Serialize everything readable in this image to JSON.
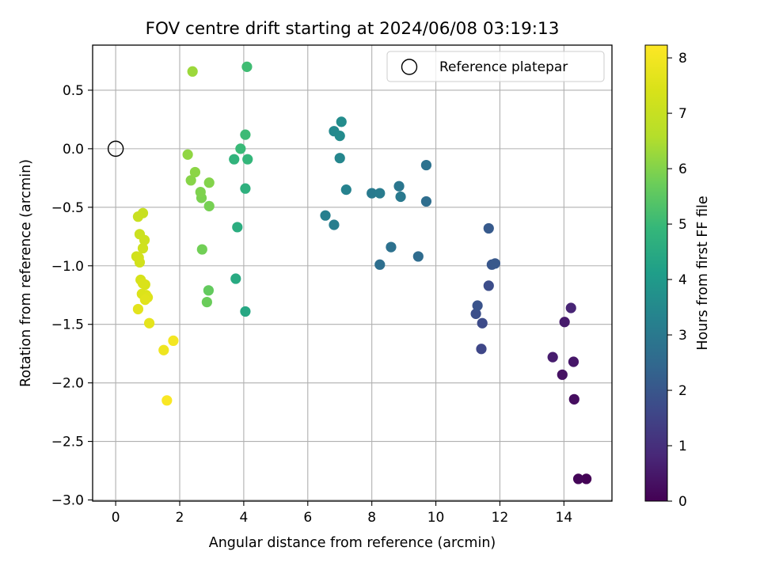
{
  "chart_data": {
    "type": "scatter",
    "title": "FOV centre drift starting at 2024/06/08 03:19:13",
    "xlabel": "Angular distance from reference (arcmin)",
    "ylabel": "Rotation from reference (arcmin)",
    "xlim": [
      -0.72,
      15.5
    ],
    "ylim": [
      -3.01,
      0.885
    ],
    "x_ticks": [
      0,
      2,
      4,
      6,
      8,
      10,
      12,
      14
    ],
    "y_ticks": [
      0.5,
      0.0,
      -0.5,
      -1.0,
      -1.5,
      -2.0,
      -2.5,
      -3.0
    ],
    "y_tick_labels": [
      "0.5",
      "0.0",
      "−0.5",
      "−1.0",
      "−1.5",
      "−2.0",
      "−2.5",
      "−3.0"
    ],
    "grid": true,
    "legend": {
      "location": "upper right",
      "entries": [
        "Reference platepar"
      ]
    },
    "reference_point": {
      "x": 0.0,
      "y": 0.0,
      "marker": "hollow circle"
    },
    "colorbar": {
      "label": "Hours from first FF file",
      "colormap": "viridis",
      "range": [
        0,
        8.23
      ],
      "ticks": [
        0,
        1,
        2,
        3,
        4,
        5,
        6,
        7,
        8
      ]
    },
    "points": [
      {
        "x": 14.7,
        "y": -2.82,
        "hours": 0.05
      },
      {
        "x": 14.45,
        "y": -2.82,
        "hours": 0.1
      },
      {
        "x": 14.32,
        "y": -2.14,
        "hours": 0.25
      },
      {
        "x": 13.95,
        "y": -1.93,
        "hours": 0.35
      },
      {
        "x": 14.3,
        "y": -1.82,
        "hours": 0.45
      },
      {
        "x": 13.65,
        "y": -1.78,
        "hours": 0.6
      },
      {
        "x": 14.02,
        "y": -1.48,
        "hours": 0.55
      },
      {
        "x": 14.22,
        "y": -1.36,
        "hours": 0.75
      },
      {
        "x": 11.42,
        "y": -1.71,
        "hours": 1.6
      },
      {
        "x": 11.45,
        "y": -1.49,
        "hours": 1.7
      },
      {
        "x": 11.25,
        "y": -1.41,
        "hours": 1.8
      },
      {
        "x": 11.3,
        "y": -1.34,
        "hours": 1.9
      },
      {
        "x": 11.65,
        "y": -1.17,
        "hours": 1.75
      },
      {
        "x": 11.75,
        "y": -0.99,
        "hours": 2.0
      },
      {
        "x": 11.85,
        "y": -0.98,
        "hours": 2.05
      },
      {
        "x": 11.65,
        "y": -0.68,
        "hours": 2.1
      },
      {
        "x": 9.45,
        "y": -0.92,
        "hours": 2.6
      },
      {
        "x": 8.6,
        "y": -0.84,
        "hours": 2.75
      },
      {
        "x": 8.25,
        "y": -0.99,
        "hours": 2.7
      },
      {
        "x": 9.7,
        "y": -0.45,
        "hours": 2.65
      },
      {
        "x": 9.7,
        "y": -0.14,
        "hours": 2.8
      },
      {
        "x": 8.85,
        "y": -0.32,
        "hours": 2.9
      },
      {
        "x": 8.9,
        "y": -0.41,
        "hours": 3.0
      },
      {
        "x": 8.0,
        "y": -0.38,
        "hours": 3.05
      },
      {
        "x": 8.25,
        "y": -0.38,
        "hours": 3.1
      },
      {
        "x": 6.55,
        "y": -0.57,
        "hours": 3.2
      },
      {
        "x": 6.82,
        "y": -0.65,
        "hours": 3.15
      },
      {
        "x": 7.2,
        "y": -0.35,
        "hours": 3.3
      },
      {
        "x": 7.0,
        "y": -0.08,
        "hours": 3.4
      },
      {
        "x": 6.82,
        "y": 0.15,
        "hours": 3.5
      },
      {
        "x": 7.0,
        "y": 0.11,
        "hours": 3.55
      },
      {
        "x": 7.05,
        "y": 0.23,
        "hours": 3.6
      },
      {
        "x": 4.05,
        "y": -1.39,
        "hours": 4.4
      },
      {
        "x": 3.75,
        "y": -1.11,
        "hours": 4.5
      },
      {
        "x": 3.8,
        "y": -0.67,
        "hours": 4.6
      },
      {
        "x": 4.05,
        "y": -0.34,
        "hours": 4.7
      },
      {
        "x": 3.7,
        "y": -0.09,
        "hours": 4.8
      },
      {
        "x": 4.12,
        "y": -0.09,
        "hours": 4.9
      },
      {
        "x": 3.9,
        "y": 0.0,
        "hours": 5.0
      },
      {
        "x": 4.05,
        "y": 0.12,
        "hours": 5.05
      },
      {
        "x": 4.1,
        "y": 0.7,
        "hours": 5.1
      },
      {
        "x": 2.9,
        "y": -1.21,
        "hours": 5.6
      },
      {
        "x": 2.85,
        "y": -1.31,
        "hours": 5.7
      },
      {
        "x": 2.7,
        "y": -0.86,
        "hours": 5.8
      },
      {
        "x": 2.92,
        "y": -0.49,
        "hours": 5.85
      },
      {
        "x": 2.68,
        "y": -0.42,
        "hours": 5.9
      },
      {
        "x": 2.65,
        "y": -0.37,
        "hours": 5.95
      },
      {
        "x": 2.92,
        "y": -0.29,
        "hours": 6.0
      },
      {
        "x": 2.35,
        "y": -0.27,
        "hours": 6.05
      },
      {
        "x": 2.48,
        "y": -0.2,
        "hours": 6.1
      },
      {
        "x": 2.25,
        "y": -0.05,
        "hours": 6.15
      },
      {
        "x": 2.4,
        "y": 0.66,
        "hours": 6.3
      },
      {
        "x": 0.85,
        "y": -0.55,
        "hours": 7.0
      },
      {
        "x": 0.7,
        "y": -0.58,
        "hours": 7.05
      },
      {
        "x": 0.75,
        "y": -0.73,
        "hours": 7.1
      },
      {
        "x": 0.9,
        "y": -0.78,
        "hours": 7.15
      },
      {
        "x": 0.85,
        "y": -0.85,
        "hours": 7.2
      },
      {
        "x": 0.65,
        "y": -0.92,
        "hours": 7.2
      },
      {
        "x": 0.75,
        "y": -0.97,
        "hours": 7.25
      },
      {
        "x": 0.72,
        "y": -0.93,
        "hours": 7.3
      },
      {
        "x": 0.78,
        "y": -1.12,
        "hours": 7.35
      },
      {
        "x": 0.92,
        "y": -1.16,
        "hours": 7.4
      },
      {
        "x": 0.85,
        "y": -1.15,
        "hours": 7.45
      },
      {
        "x": 0.82,
        "y": -1.24,
        "hours": 7.5
      },
      {
        "x": 0.95,
        "y": -1.25,
        "hours": 7.5
      },
      {
        "x": 1.0,
        "y": -1.27,
        "hours": 7.55
      },
      {
        "x": 0.92,
        "y": -1.29,
        "hours": 7.6
      },
      {
        "x": 0.7,
        "y": -1.37,
        "hours": 7.65
      },
      {
        "x": 1.05,
        "y": -1.49,
        "hours": 7.7
      },
      {
        "x": 1.5,
        "y": -1.72,
        "hours": 7.9
      },
      {
        "x": 1.8,
        "y": -1.64,
        "hours": 8.0
      },
      {
        "x": 1.6,
        "y": -2.15,
        "hours": 8.15
      }
    ]
  }
}
